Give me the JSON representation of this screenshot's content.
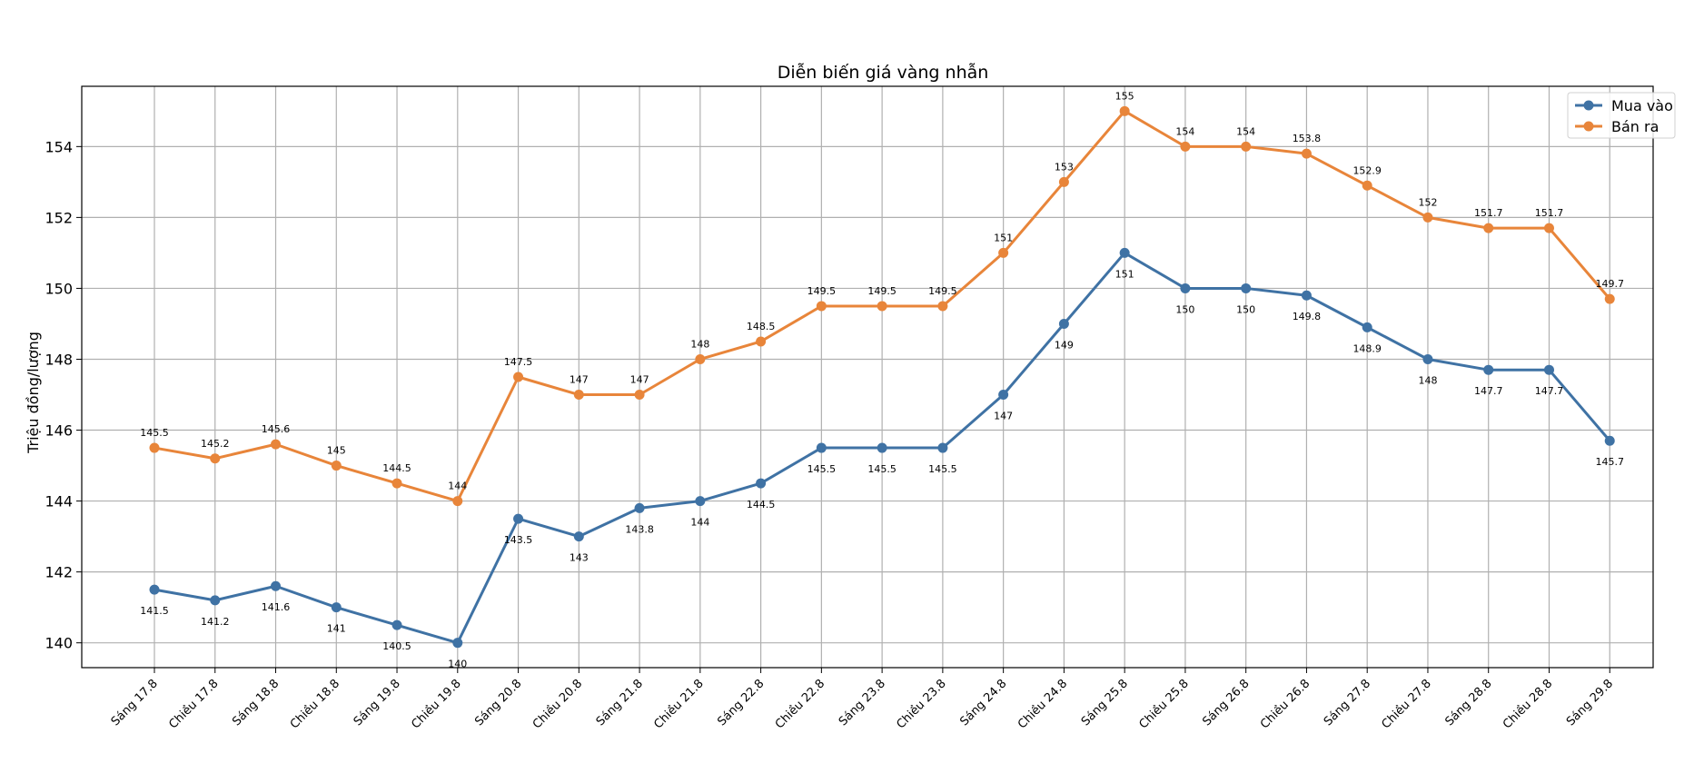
{
  "chart_data": {
    "type": "line",
    "title": "Diễn biến giá vàng nhẫn",
    "xlabel": "",
    "ylabel": "Triệu đồng/lượng",
    "ylim": [
      139.3,
      155.7
    ],
    "yticks": [
      140,
      142,
      144,
      146,
      148,
      150,
      152,
      154
    ],
    "grid": true,
    "legend_position": "top-right",
    "categories": [
      "Sáng 17.8",
      "Chiều 17.8",
      "Sáng 18.8",
      "Chiều 18.8",
      "Sáng 19.8",
      "Chiều 19.8",
      "Sáng 20.8",
      "Chiều 20.8",
      "Sáng 21.8",
      "Chiều 21.8",
      "Sáng 22.8",
      "Chiều 22.8",
      "Sáng 23.8",
      "Chiều 23.8",
      "Sáng 24.8",
      "Chiều 24.8",
      "Sáng 25.8",
      "Chiều 25.8",
      "Sáng 26.8",
      "Chiều 26.8",
      "Sáng 27.8",
      "Chiều 27.8",
      "Sáng 28.8",
      "Chiều 28.8",
      "Sáng 29.8"
    ],
    "series": [
      {
        "name": "Mua vào",
        "color": "#3f72a4",
        "label_position": "below",
        "values": [
          141.5,
          141.2,
          141.6,
          141,
          140.5,
          140,
          143.5,
          143,
          143.8,
          144,
          144.5,
          145.5,
          145.5,
          145.5,
          147,
          149,
          151,
          150,
          150,
          149.8,
          148.9,
          148,
          147.7,
          147.7,
          145.7
        ]
      },
      {
        "name": "Bán ra",
        "color": "#e8853a",
        "label_position": "above",
        "values": [
          145.5,
          145.2,
          145.6,
          145,
          144.5,
          144,
          147.5,
          147,
          147,
          148,
          148.5,
          149.5,
          149.5,
          149.5,
          151,
          153,
          155,
          154,
          154,
          153.8,
          152.9,
          152,
          151.7,
          151.7,
          149.7
        ]
      }
    ]
  }
}
